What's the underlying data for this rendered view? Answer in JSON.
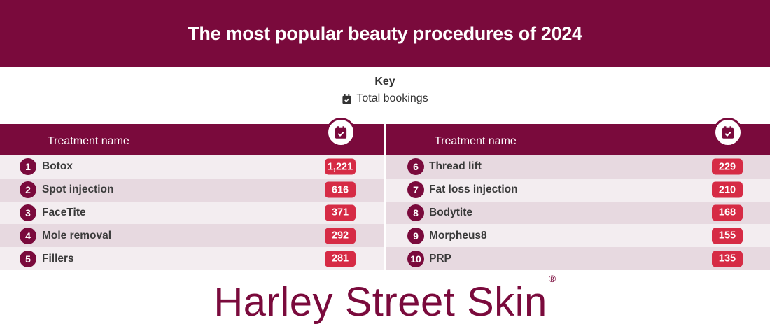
{
  "title": "The most popular beauty procedures of 2024",
  "key": {
    "title": "Key",
    "label": "Total bookings",
    "icon": "calendar-check-icon"
  },
  "column_header": "Treatment name",
  "brand": {
    "name": "Harley Street Skin",
    "mark": "®"
  },
  "colors": {
    "primary": "#7a0a3c",
    "value_badge": "#d62b45",
    "row_light": "#f3edf0",
    "row_dark": "#e7d9e0"
  },
  "chart_data": {
    "type": "table",
    "title": "The most popular beauty procedures of 2024",
    "columns": [
      "Treatment name",
      "Total bookings"
    ],
    "rows": [
      {
        "rank": "1",
        "name": "Botox",
        "value": 1221,
        "display": "1,221"
      },
      {
        "rank": "2",
        "name": "Spot injection",
        "value": 616,
        "display": "616"
      },
      {
        "rank": "3",
        "name": "FaceTite",
        "value": 371,
        "display": "371"
      },
      {
        "rank": "4",
        "name": "Mole removal",
        "value": 292,
        "display": "292"
      },
      {
        "rank": "5",
        "name": "Fillers",
        "value": 281,
        "display": "281"
      },
      {
        "rank": "6",
        "name": "Thread lift",
        "value": 229,
        "display": "229"
      },
      {
        "rank": "7",
        "name": "Fat loss injection",
        "value": 210,
        "display": "210"
      },
      {
        "rank": "8",
        "name": "Bodytite",
        "value": 168,
        "display": "168"
      },
      {
        "rank": "9",
        "name": "Morpheus8",
        "value": 155,
        "display": "155"
      },
      {
        "rank": "10",
        "name": "PRP",
        "value": 135,
        "display": "135"
      }
    ]
  }
}
